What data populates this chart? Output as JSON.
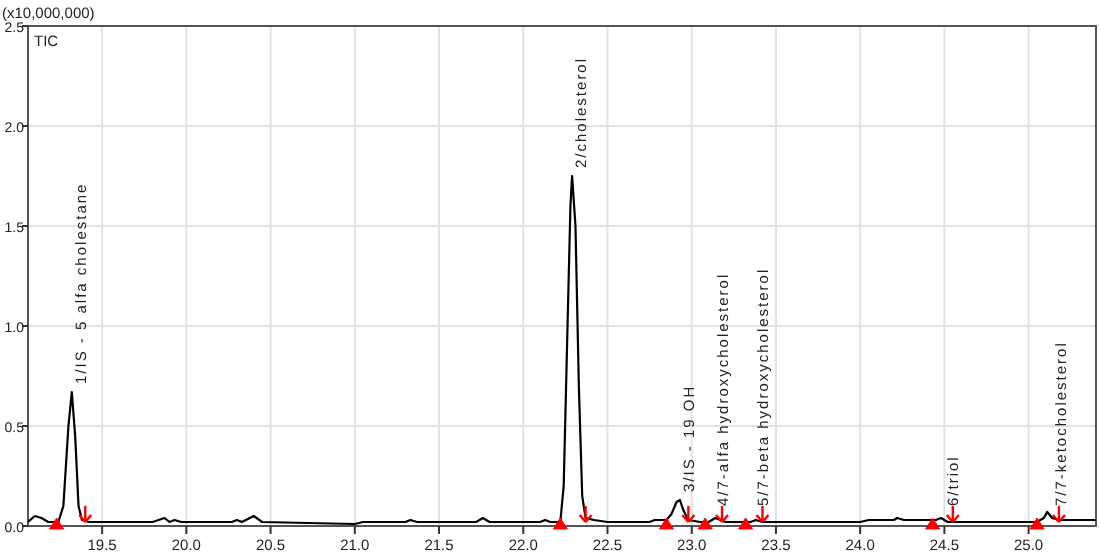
{
  "chart_data": {
    "type": "line",
    "ylabel": "(x10,000,000)",
    "xlim": [
      19.06,
      25.4
    ],
    "ylim": [
      0,
      2.5
    ],
    "xticks": [
      {
        "value": 19.5,
        "label": "19.5"
      },
      {
        "value": 20,
        "label": "20.0"
      },
      {
        "value": 20.5,
        "label": "20.5"
      },
      {
        "value": 21,
        "label": "21.0"
      },
      {
        "value": 21.5,
        "label": "21.5"
      },
      {
        "value": 22,
        "label": "22.0"
      },
      {
        "value": 22.5,
        "label": "22.5"
      },
      {
        "value": 23,
        "label": "23.0"
      },
      {
        "value": 23.5,
        "label": "23.5"
      },
      {
        "value": 24,
        "label": "24.0"
      },
      {
        "value": 24.5,
        "label": "24.5"
      },
      {
        "value": 25,
        "label": "25.0"
      }
    ],
    "yticks": [
      {
        "value": 0,
        "label": "0.0"
      },
      0.5,
      {
        "value": 1,
        "label": "1.0"
      },
      1.5,
      {
        "value": 2,
        "label": "2.0"
      },
      2.5
    ],
    "grid": true,
    "legend": "top left",
    "series": [
      {
        "name": "TIC",
        "color": "#000000",
        "marker": "none",
        "x": [
          19.06,
          19.1,
          19.14,
          19.18,
          19.24,
          19.27,
          19.3,
          19.32,
          19.34,
          19.36,
          19.38,
          19.42,
          19.8,
          19.87,
          19.9,
          19.93,
          19.97,
          20.0,
          20.27,
          20.3,
          20.33,
          20.4,
          20.45,
          21.0,
          21.05,
          21.3,
          21.33,
          21.37,
          21.72,
          21.76,
          21.8,
          22.1,
          22.13,
          22.16,
          22.22,
          22.24,
          22.26,
          22.28,
          22.29,
          22.31,
          22.33,
          22.35,
          22.37,
          22.42,
          22.5,
          22.75,
          22.78,
          22.85,
          22.88,
          22.91,
          22.93,
          22.95,
          22.98,
          23.05,
          23.1,
          23.14,
          23.17,
          23.2,
          23.35,
          23.38,
          23.42,
          24.0,
          24.05,
          24.2,
          24.22,
          24.26,
          24.45,
          24.48,
          24.52,
          25.05,
          25.09,
          25.11,
          25.14,
          25.18,
          25.4
        ],
        "values": [
          0.02,
          0.05,
          0.04,
          0.02,
          0.02,
          0.1,
          0.5,
          0.67,
          0.45,
          0.1,
          0.03,
          0.02,
          0.02,
          0.04,
          0.02,
          0.03,
          0.02,
          0.02,
          0.02,
          0.03,
          0.02,
          0.05,
          0.02,
          0.01,
          0.02,
          0.02,
          0.03,
          0.02,
          0.02,
          0.04,
          0.02,
          0.02,
          0.03,
          0.02,
          0.02,
          0.2,
          0.9,
          1.6,
          1.75,
          1.5,
          0.7,
          0.15,
          0.04,
          0.03,
          0.02,
          0.02,
          0.03,
          0.03,
          0.06,
          0.12,
          0.13,
          0.08,
          0.03,
          0.02,
          0.02,
          0.04,
          0.03,
          0.02,
          0.02,
          0.03,
          0.02,
          0.02,
          0.03,
          0.03,
          0.04,
          0.03,
          0.03,
          0.04,
          0.02,
          0.02,
          0.04,
          0.07,
          0.04,
          0.03,
          0.03
        ]
      },
      {
        "type": "scatter",
        "color": "#ff0000",
        "marker": "triangle",
        "x": [
          19.23,
          22.22,
          22.85,
          23.08,
          23.32,
          24.43,
          25.05
        ],
        "values": [
          0,
          0,
          0,
          0,
          0,
          0,
          0
        ]
      },
      {
        "type": "scatter",
        "color": "#ff0000",
        "x": [
          19.4,
          22.37,
          22.98,
          23.18,
          23.42,
          24.55,
          25.18
        ],
        "values": [
          0.06,
          0.06,
          0.06,
          0.06,
          0.06,
          0.06,
          0.06
        ]
      }
    ],
    "annotations": [
      {
        "text": "1/IS - 5 alfa cholestane",
        "x": 19.32,
        "y": 0.67
      },
      {
        "text": "2/cholesterol",
        "x": 22.29,
        "y": 1.75
      },
      {
        "text": "3/IS - 19 OH",
        "x": 22.93,
        "y": 0.13
      },
      {
        "text": "4/7-alfa hydroxycholesterol",
        "x": 23.13,
        "y": 0.06
      },
      {
        "text": "5/7-beta hydroxycholesterol",
        "x": 23.37,
        "y": 0.06
      },
      {
        "text": "6/triol",
        "x": 24.5,
        "y": 0.06
      },
      {
        "text": "7/7-ketocholesterol",
        "x": 25.14,
        "y": 0.06
      }
    ]
  }
}
